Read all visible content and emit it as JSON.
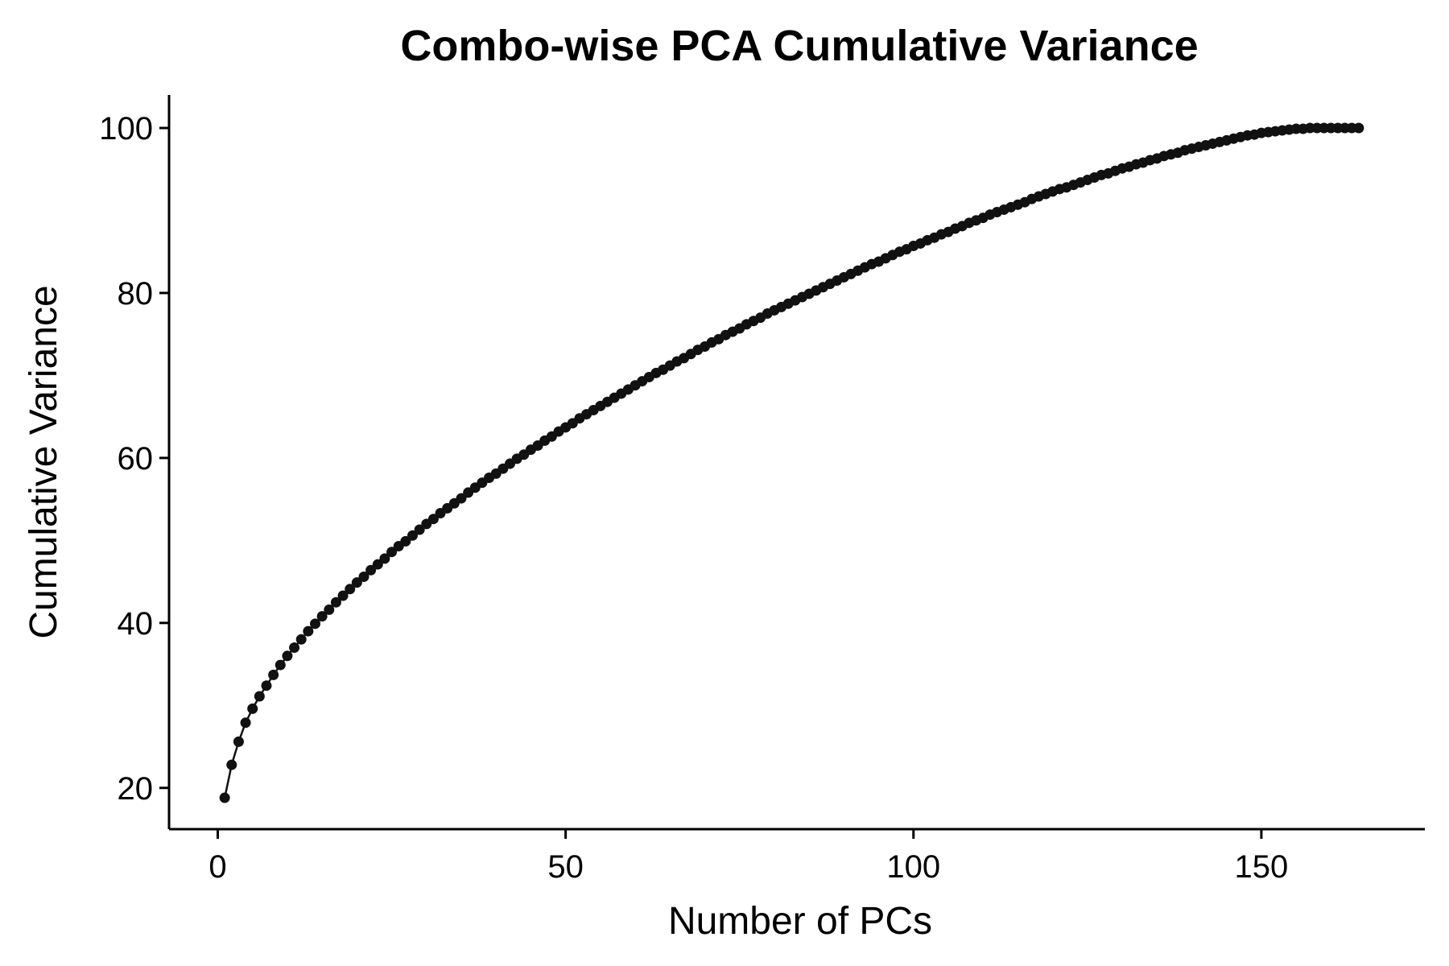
{
  "chart_data": {
    "type": "line",
    "title": "Combo-wise PCA Cumulative Variance",
    "xlabel": "Number of PCs",
    "ylabel": "Cumulative Variance",
    "xlim": [
      -7,
      173.5
    ],
    "ylim": [
      15,
      104
    ],
    "xticks": [
      0,
      50,
      100,
      150
    ],
    "yticks": [
      20,
      40,
      60,
      80,
      100
    ],
    "grid": false,
    "legend": "none",
    "markers": true,
    "colors": {
      "series": "#111111",
      "axis": "#000000",
      "text": "#000000"
    },
    "series": [
      {
        "x_start": 1,
        "x_step": 1,
        "values": [
          18.8,
          22.8,
          25.6,
          27.9,
          29.6,
          31.1,
          32.4,
          33.7,
          34.9,
          36.0,
          37.0,
          38.0,
          39.0,
          39.9,
          40.8,
          41.6,
          42.5,
          43.3,
          44.1,
          44.9,
          45.6,
          46.4,
          47.1,
          47.8,
          48.6,
          49.3,
          49.9,
          50.6,
          51.3,
          52.0,
          52.6,
          53.3,
          53.9,
          54.5,
          55.1,
          55.8,
          56.4,
          57.0,
          57.6,
          58.1,
          58.7,
          59.3,
          59.9,
          60.4,
          61.0,
          61.5,
          62.1,
          62.6,
          63.2,
          63.7,
          64.2,
          64.8,
          65.3,
          65.8,
          66.3,
          66.8,
          67.3,
          67.8,
          68.3,
          68.8,
          69.3,
          69.8,
          70.3,
          70.7,
          71.2,
          71.7,
          72.1,
          72.6,
          73.1,
          73.5,
          74.0,
          74.4,
          74.9,
          75.3,
          75.7,
          76.2,
          76.6,
          77.0,
          77.5,
          77.9,
          78.3,
          78.7,
          79.1,
          79.5,
          79.9,
          80.3,
          80.7,
          81.1,
          81.5,
          81.9,
          82.3,
          82.7,
          83.1,
          83.5,
          83.8,
          84.2,
          84.6,
          85.0,
          85.3,
          85.7,
          86.0,
          86.4,
          86.7,
          87.1,
          87.4,
          87.8,
          88.1,
          88.5,
          88.8,
          89.1,
          89.5,
          89.8,
          90.1,
          90.4,
          90.7,
          91.0,
          91.4,
          91.7,
          92.0,
          92.3,
          92.6,
          92.8,
          93.1,
          93.4,
          93.7,
          94.0,
          94.3,
          94.5,
          94.8,
          95.1,
          95.3,
          95.6,
          95.8,
          96.1,
          96.3,
          96.6,
          96.8,
          97.0,
          97.3,
          97.5,
          97.7,
          97.9,
          98.1,
          98.3,
          98.5,
          98.7,
          98.9,
          99.1,
          99.2,
          99.4,
          99.5,
          99.6,
          99.7,
          99.8,
          99.9,
          99.9,
          100.0,
          100.0,
          100.0,
          100.0,
          100.0,
          100.0,
          100.0,
          100.0
        ]
      }
    ]
  }
}
